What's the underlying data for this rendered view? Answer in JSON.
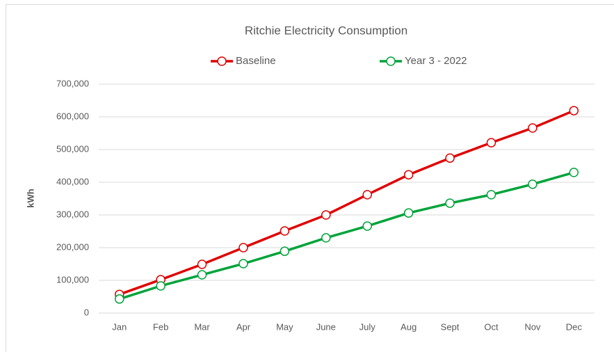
{
  "chart_data": {
    "type": "line",
    "title": "Ritchie Electricity Consumption",
    "y_label": "kWh",
    "categories": [
      "Jan",
      "Feb",
      "Mar",
      "Apr",
      "May",
      "June",
      "July",
      "Aug",
      "Sept",
      "Oct",
      "Nov",
      "Dec"
    ],
    "series": [
      {
        "name": "Baseline",
        "color": "#e00000",
        "values": [
          57000,
          102000,
          149000,
          200000,
          251000,
          300000,
          362000,
          423000,
          474000,
          521000,
          566000,
          619000
        ]
      },
      {
        "name": "Year 3 - 2022",
        "color": "#00a33b",
        "values": [
          43000,
          83000,
          117000,
          151000,
          189000,
          230000,
          266000,
          306000,
          336000,
          362000,
          394000,
          430000
        ]
      }
    ],
    "ylim": [
      0,
      700000
    ],
    "yticks": [
      0,
      {
        "value": 100000,
        "label": "100,000"
      },
      {
        "value": 200000,
        "label": "200,000"
      },
      {
        "value": 300000,
        "label": "300,000"
      },
      {
        "value": 400000,
        "label": "400,000"
      },
      {
        "value": 500000,
        "label": "500,000"
      },
      {
        "value": 600000,
        "label": "600,000"
      },
      {
        "value": 700000,
        "label": "700,000"
      }
    ],
    "grid": true,
    "legend": "top"
  }
}
